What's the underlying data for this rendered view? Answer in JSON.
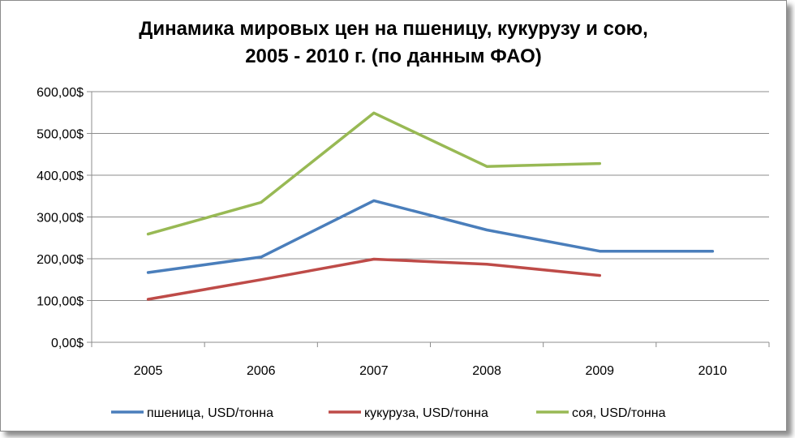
{
  "chart_data": {
    "type": "line",
    "title_line1": "Динамика мировых цен на пшеницу, кукурузу и сою,",
    "title_line2": "2005 - 2010 г. (по данным ФАО)",
    "xlabel": "",
    "ylabel": "",
    "categories": [
      "2005",
      "2006",
      "2007",
      "2008",
      "2009",
      "2010"
    ],
    "ylim": [
      0,
      600
    ],
    "yticks": [
      0,
      100,
      200,
      300,
      400,
      500,
      600
    ],
    "ytick_labels": [
      "0,00$",
      "100,00$",
      "200,00$",
      "300,00$",
      "400,00$",
      "500,00$",
      "600,00$"
    ],
    "grid": true,
    "legend_position": "bottom",
    "series": [
      {
        "name": "пшеница, USD/тонна",
        "color": "#4a7ebb",
        "values": [
          167,
          204,
          339,
          269,
          218,
          218
        ]
      },
      {
        "name": "кукуруза, USD/тонна",
        "color": "#be4b48",
        "values": [
          103,
          150,
          199,
          187,
          160,
          null
        ]
      },
      {
        "name": "соя, USD/тонна",
        "color": "#98b954",
        "values": [
          259,
          335,
          549,
          421,
          428,
          null
        ]
      }
    ]
  }
}
